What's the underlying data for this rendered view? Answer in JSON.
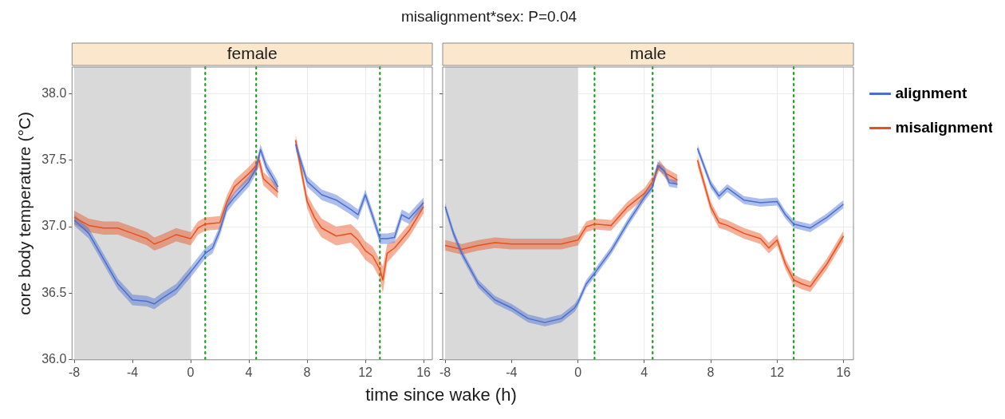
{
  "chart_data": [
    {
      "type": "line",
      "title": "female",
      "annotations": [
        "misalignment*sex: P=0.04"
      ],
      "xlabel": "time since wake (h)",
      "ylabel": "core body temperature (°C)",
      "xlim": [
        -8.15,
        16.6
      ],
      "xticks": [
        -8,
        -4,
        0,
        4,
        8,
        12,
        16
      ],
      "ylim": [
        36,
        38.2
      ],
      "yticks": [
        {
          "value": 36,
          "label": "36.0"
        },
        {
          "value": 36.5,
          "label": "36.5"
        },
        {
          "value": 37,
          "label": "37.0"
        },
        {
          "value": 37.5,
          "label": "37.5"
        },
        {
          "value": 38,
          "label": "38.0"
        }
      ],
      "grid": true,
      "legend": false,
      "marker": "none",
      "bands": [
        {
          "axis": "x",
          "from": -8,
          "to": 0,
          "color": "#d9d9d9"
        }
      ],
      "ref_lines": [
        {
          "axis": "x",
          "value": 1,
          "color": "#1e9e1e",
          "line_style": "dotted"
        },
        {
          "axis": "x",
          "value": 4.5,
          "color": "#1e9e1e",
          "line_style": "dotted"
        },
        {
          "axis": "x",
          "value": 13,
          "color": "#1e9e1e",
          "line_style": "dotted"
        }
      ],
      "series": [
        {
          "color": "#4a6fd0",
          "x": [
            -8,
            -7,
            -6,
            -5,
            -4,
            -3,
            -2.5,
            -2,
            -1,
            0,
            1,
            1.5,
            2,
            2.5,
            3,
            4,
            4.5,
            4.8,
            5.2,
            6,
            6.6,
            7.2,
            8,
            9,
            10,
            11,
            11.5,
            12,
            12.5,
            13,
            13.5,
            14,
            14.5,
            15,
            16
          ],
          "values": [
            37.05,
            36.95,
            36.76,
            36.57,
            36.45,
            36.44,
            36.42,
            36.46,
            36.53,
            36.66,
            36.8,
            36.84,
            36.97,
            37.15,
            37.22,
            37.34,
            37.44,
            37.58,
            37.45,
            37.3,
            null,
            37.62,
            37.34,
            37.24,
            37.2,
            37.13,
            37.09,
            37.24,
            37.08,
            36.91,
            36.91,
            36.92,
            37.09,
            37.06,
            37.18
          ],
          "lower": [
            37.01,
            36.91,
            36.72,
            36.53,
            36.41,
            36.4,
            36.38,
            36.42,
            36.49,
            36.62,
            36.76,
            36.8,
            36.93,
            37.11,
            37.18,
            37.3,
            37.4,
            37.54,
            37.41,
            37.26,
            null,
            37.58,
            37.3,
            37.2,
            37.16,
            37.09,
            37.05,
            37.2,
            37.04,
            36.87,
            36.87,
            36.88,
            37.05,
            37.02,
            37.14
          ],
          "upper": [
            37.09,
            36.99,
            36.8,
            36.61,
            36.49,
            36.48,
            36.46,
            36.5,
            36.57,
            36.7,
            36.84,
            36.88,
            37.01,
            37.19,
            37.26,
            37.38,
            37.48,
            37.62,
            37.49,
            37.34,
            null,
            37.66,
            37.38,
            37.28,
            37.24,
            37.17,
            37.13,
            37.28,
            37.12,
            36.95,
            36.95,
            36.96,
            37.13,
            37.1,
            37.22
          ]
        },
        {
          "color": "#e8501e",
          "x": [
            -8,
            -7,
            -6,
            -5,
            -4,
            -3,
            -2.5,
            -2,
            -1,
            0,
            0.5,
            1,
            2,
            2.5,
            3,
            4,
            4.5,
            4.7,
            5,
            6,
            6.6,
            7.2,
            8,
            8.5,
            9,
            10,
            11,
            11.5,
            12,
            12.5,
            13,
            13.2,
            13.5,
            14,
            15,
            16
          ],
          "values": [
            37.07,
            37.01,
            36.99,
            36.99,
            36.95,
            36.91,
            36.87,
            36.89,
            36.94,
            36.91,
            36.99,
            37.02,
            37.03,
            37.19,
            37.3,
            37.4,
            37.46,
            37.5,
            37.36,
            37.26,
            null,
            37.65,
            37.19,
            37.07,
            36.99,
            36.93,
            36.95,
            36.9,
            36.82,
            36.78,
            36.68,
            36.6,
            36.8,
            36.84,
            36.97,
            37.15
          ],
          "lower": [
            37.02,
            36.96,
            36.94,
            36.94,
            36.9,
            36.86,
            36.82,
            36.84,
            36.89,
            36.86,
            36.94,
            36.97,
            36.98,
            37.14,
            37.25,
            37.35,
            37.41,
            37.45,
            37.31,
            37.21,
            null,
            37.6,
            37.14,
            37.0,
            36.92,
            36.86,
            36.88,
            36.83,
            36.75,
            36.71,
            36.61,
            36.5,
            36.73,
            36.79,
            36.92,
            37.1
          ],
          "upper": [
            37.12,
            37.06,
            37.04,
            37.04,
            37.0,
            36.96,
            36.92,
            36.94,
            36.99,
            36.96,
            37.04,
            37.07,
            37.08,
            37.24,
            37.35,
            37.45,
            37.51,
            37.55,
            37.41,
            37.31,
            null,
            37.7,
            37.24,
            37.14,
            37.06,
            37.0,
            37.02,
            36.97,
            36.89,
            36.85,
            36.75,
            36.7,
            36.87,
            36.89,
            37.02,
            37.2
          ]
        }
      ]
    },
    {
      "type": "line",
      "title": "male",
      "xlim": [
        -8.15,
        16.6
      ],
      "xticks": [
        -8,
        -4,
        0,
        4,
        8,
        12,
        16
      ],
      "ylim": [
        36,
        38.2
      ],
      "yticks": [
        36,
        36.5,
        37,
        37.5,
        38
      ],
      "tick_labels": "x",
      "grid": true,
      "legend": "right",
      "marker": "none",
      "bands": [
        {
          "axis": "x",
          "from": -8,
          "to": 0,
          "color": "#d9d9d9"
        }
      ],
      "ref_lines": [
        {
          "axis": "x",
          "value": 1,
          "color": "#1e9e1e",
          "line_style": "dotted"
        },
        {
          "axis": "x",
          "value": 4.5,
          "color": "#1e9e1e",
          "line_style": "dotted"
        },
        {
          "axis": "x",
          "value": 13,
          "color": "#1e9e1e",
          "line_style": "dotted"
        }
      ],
      "series": [
        {
          "name": "alignment",
          "color": "#4a6fd0",
          "x": [
            -8,
            -7.5,
            -7,
            -6,
            -5,
            -4,
            -3,
            -2,
            -1,
            -0.2,
            0,
            0.5,
            1,
            2,
            3,
            4,
            4.5,
            4.8,
            5.2,
            5.5,
            6,
            6.6,
            7.2,
            8,
            8.5,
            9,
            10,
            11,
            12,
            12.5,
            13,
            14,
            15,
            16
          ],
          "values": [
            37.15,
            36.95,
            36.8,
            36.57,
            36.45,
            36.39,
            36.31,
            36.28,
            36.31,
            36.39,
            36.43,
            36.57,
            36.65,
            36.82,
            37.03,
            37.22,
            37.3,
            37.46,
            37.42,
            37.33,
            37.32,
            null,
            37.59,
            37.32,
            37.23,
            37.29,
            37.2,
            37.18,
            37.19,
            37.09,
            37.02,
            36.99,
            37.07,
            37.17
          ],
          "lower": [
            37.12,
            36.92,
            36.77,
            36.54,
            36.42,
            36.36,
            36.28,
            36.25,
            36.28,
            36.36,
            36.4,
            36.54,
            36.62,
            36.79,
            37.0,
            37.19,
            37.27,
            37.43,
            37.39,
            37.3,
            37.29,
            null,
            37.56,
            37.29,
            37.2,
            37.26,
            37.17,
            37.15,
            37.16,
            37.06,
            36.99,
            36.96,
            37.04,
            37.14
          ],
          "upper": [
            37.18,
            36.98,
            36.83,
            36.6,
            36.48,
            36.42,
            36.34,
            36.31,
            36.34,
            36.42,
            36.46,
            36.6,
            36.68,
            36.85,
            37.06,
            37.25,
            37.33,
            37.49,
            37.45,
            37.36,
            37.35,
            null,
            37.62,
            37.35,
            37.26,
            37.32,
            37.23,
            37.21,
            37.22,
            37.12,
            37.05,
            37.02,
            37.1,
            37.2
          ]
        },
        {
          "name": "misalignment",
          "color": "#e8501e",
          "x": [
            -8,
            -7,
            -6,
            -5,
            -4,
            -2,
            -1,
            0,
            0.5,
            1,
            2,
            3,
            4,
            4.5,
            4.9,
            5.3,
            6,
            6.6,
            7.2,
            8,
            8.5,
            9,
            10,
            11,
            11.5,
            12,
            12.5,
            13,
            13.5,
            14,
            15,
            16
          ],
          "values": [
            36.86,
            36.83,
            36.86,
            36.88,
            36.87,
            36.87,
            36.87,
            36.9,
            37.0,
            37.02,
            37.01,
            37.15,
            37.25,
            37.34,
            37.46,
            37.4,
            37.35,
            null,
            37.5,
            37.15,
            37.03,
            37.01,
            36.95,
            36.91,
            36.84,
            36.9,
            36.72,
            36.6,
            36.57,
            36.55,
            36.72,
            36.93
          ],
          "lower": [
            36.82,
            36.79,
            36.82,
            36.84,
            36.83,
            36.83,
            36.83,
            36.86,
            36.96,
            36.98,
            36.97,
            37.11,
            37.21,
            37.3,
            37.42,
            37.36,
            37.31,
            null,
            37.46,
            37.11,
            36.99,
            36.97,
            36.91,
            36.87,
            36.8,
            36.86,
            36.68,
            36.56,
            36.53,
            36.51,
            36.68,
            36.89
          ],
          "upper": [
            36.9,
            36.87,
            36.9,
            36.92,
            36.91,
            36.91,
            36.91,
            36.94,
            37.04,
            37.06,
            37.05,
            37.19,
            37.29,
            37.38,
            37.5,
            37.44,
            37.39,
            null,
            37.54,
            37.19,
            37.07,
            37.05,
            36.99,
            36.95,
            36.88,
            36.94,
            36.76,
            36.64,
            36.61,
            36.59,
            36.76,
            36.97
          ]
        }
      ]
    }
  ]
}
